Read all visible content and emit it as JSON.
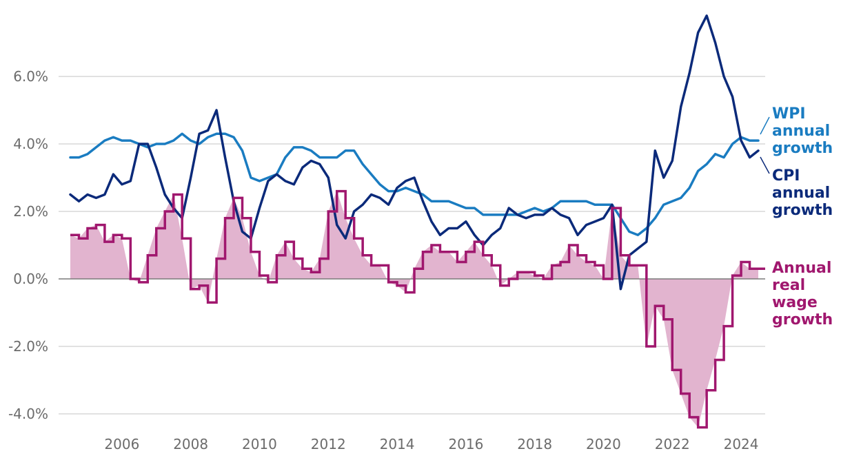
{
  "chart_data": {
    "type": "line",
    "title": "",
    "xlabel": "",
    "ylabel": "",
    "ylim": [
      -4.6,
      7.9
    ],
    "xlim": [
      2004.0,
      2024.7
    ],
    "yticks": [
      6.0,
      4.0,
      2.0,
      0.0,
      -2.0,
      -4.0
    ],
    "ytick_labels": [
      "6.0%",
      "4.0%",
      "2.0%",
      "0.0%",
      "-2.0%",
      "-4.0%"
    ],
    "xticks": [
      2006,
      2008,
      2010,
      2012,
      2014,
      2016,
      2018,
      2020,
      2022,
      2024
    ],
    "xtick_labels": [
      "2006",
      "2008",
      "2010",
      "2012",
      "2014",
      "2016",
      "2018",
      "2020",
      "2022",
      "2024"
    ],
    "grid": true,
    "legend": "direct labels at right",
    "series": [
      {
        "name": "WPI annual growth",
        "label_lines": [
          "WPI",
          "annual",
          "growth"
        ],
        "color": "#1a7cc1",
        "style": "line",
        "x": [
          2004.5,
          2004.75,
          2005,
          2005.25,
          2005.5,
          2005.75,
          2006,
          2006.25,
          2006.5,
          2006.75,
          2007,
          2007.25,
          2007.5,
          2007.75,
          2008,
          2008.25,
          2008.5,
          2008.75,
          2009,
          2009.25,
          2009.5,
          2009.75,
          2010,
          2010.25,
          2010.5,
          2010.75,
          2011,
          2011.25,
          2011.5,
          2011.75,
          2012,
          2012.25,
          2012.5,
          2012.75,
          2013,
          2013.25,
          2013.5,
          2013.75,
          2014,
          2014.25,
          2014.5,
          2014.75,
          2015,
          2015.25,
          2015.5,
          2015.75,
          2016,
          2016.25,
          2016.5,
          2016.75,
          2017,
          2017.25,
          2017.5,
          2017.75,
          2018,
          2018.25,
          2018.5,
          2018.75,
          2019,
          2019.25,
          2019.5,
          2019.75,
          2020,
          2020.25,
          2020.5,
          2020.75,
          2021,
          2021.25,
          2021.5,
          2021.75,
          2022,
          2022.25,
          2022.5,
          2022.75,
          2023,
          2023.25,
          2023.5,
          2023.75,
          2024,
          2024.25,
          2024.5
        ],
        "values": [
          3.6,
          3.6,
          3.7,
          3.9,
          4.1,
          4.2,
          4.1,
          4.1,
          4.0,
          3.9,
          4.0,
          4.0,
          4.1,
          4.3,
          4.1,
          4.0,
          4.2,
          4.3,
          4.3,
          4.2,
          3.8,
          3.0,
          2.9,
          3.0,
          3.1,
          3.6,
          3.9,
          3.9,
          3.8,
          3.6,
          3.6,
          3.6,
          3.8,
          3.8,
          3.4,
          3.1,
          2.8,
          2.6,
          2.6,
          2.7,
          2.6,
          2.5,
          2.3,
          2.3,
          2.3,
          2.2,
          2.1,
          2.1,
          1.9,
          1.9,
          1.9,
          1.9,
          1.9,
          2.0,
          2.1,
          2.0,
          2.1,
          2.3,
          2.3,
          2.3,
          2.3,
          2.2,
          2.2,
          2.2,
          1.8,
          1.4,
          1.3,
          1.5,
          1.8,
          2.2,
          2.3,
          2.4,
          2.7,
          3.2,
          3.4,
          3.7,
          3.6,
          4.0,
          4.2,
          4.1,
          4.1
        ]
      },
      {
        "name": "CPI annual growth",
        "label_lines": [
          "CPI",
          "annual",
          "growth"
        ],
        "color": "#0b2a7a",
        "style": "line",
        "x": [
          2004.5,
          2004.75,
          2005,
          2005.25,
          2005.5,
          2005.75,
          2006,
          2006.25,
          2006.5,
          2006.75,
          2007,
          2007.25,
          2007.5,
          2007.75,
          2008,
          2008.25,
          2008.5,
          2008.75,
          2009,
          2009.25,
          2009.5,
          2009.75,
          2010,
          2010.25,
          2010.5,
          2010.75,
          2011,
          2011.25,
          2011.5,
          2011.75,
          2012,
          2012.25,
          2012.5,
          2012.75,
          2013,
          2013.25,
          2013.5,
          2013.75,
          2014,
          2014.25,
          2014.5,
          2014.75,
          2015,
          2015.25,
          2015.5,
          2015.75,
          2016,
          2016.25,
          2016.5,
          2016.75,
          2017,
          2017.25,
          2017.5,
          2017.75,
          2018,
          2018.25,
          2018.5,
          2018.75,
          2019,
          2019.25,
          2019.5,
          2019.75,
          2020,
          2020.25,
          2020.5,
          2020.75,
          2021,
          2021.25,
          2021.5,
          2021.75,
          2022,
          2022.25,
          2022.5,
          2022.75,
          2023,
          2023.25,
          2023.5,
          2023.75,
          2024,
          2024.25,
          2024.5
        ],
        "values": [
          2.5,
          2.3,
          2.5,
          2.4,
          2.5,
          3.1,
          2.8,
          2.9,
          4.0,
          4.0,
          3.3,
          2.5,
          2.1,
          1.8,
          3.0,
          4.3,
          4.4,
          5.0,
          3.6,
          2.3,
          1.4,
          1.2,
          2.1,
          2.9,
          3.1,
          2.9,
          2.8,
          3.3,
          3.5,
          3.4,
          3.0,
          1.6,
          1.2,
          2.0,
          2.2,
          2.5,
          2.4,
          2.2,
          2.7,
          2.9,
          3.0,
          2.3,
          1.7,
          1.3,
          1.5,
          1.5,
          1.7,
          1.3,
          1.0,
          1.3,
          1.5,
          2.1,
          1.9,
          1.8,
          1.9,
          1.9,
          2.1,
          1.9,
          1.8,
          1.3,
          1.6,
          1.7,
          1.8,
          2.2,
          -0.3,
          0.7,
          0.9,
          1.1,
          3.8,
          3.0,
          3.5,
          5.1,
          6.1,
          7.3,
          7.8,
          7.0,
          6.0,
          5.4,
          4.1,
          3.6,
          3.8
        ]
      },
      {
        "name": "Annual real wage growth",
        "label_lines": [
          "Annual",
          "real",
          "wage",
          "growth"
        ],
        "color": "#a0176e",
        "fill_color": "#e2b4cf",
        "style": "step-with-area",
        "x": [
          2004.5,
          2004.75,
          2005,
          2005.25,
          2005.5,
          2005.75,
          2006,
          2006.25,
          2006.5,
          2006.75,
          2007,
          2007.25,
          2007.5,
          2007.75,
          2008,
          2008.25,
          2008.5,
          2008.75,
          2009,
          2009.25,
          2009.5,
          2009.75,
          2010,
          2010.25,
          2010.5,
          2010.75,
          2011,
          2011.25,
          2011.5,
          2011.75,
          2012,
          2012.25,
          2012.5,
          2012.75,
          2013,
          2013.25,
          2013.5,
          2013.75,
          2014,
          2014.25,
          2014.5,
          2014.75,
          2015,
          2015.25,
          2015.5,
          2015.75,
          2016,
          2016.25,
          2016.5,
          2016.75,
          2017,
          2017.25,
          2017.5,
          2017.75,
          2018,
          2018.25,
          2018.5,
          2018.75,
          2019,
          2019.25,
          2019.5,
          2019.75,
          2020,
          2020.25,
          2020.5,
          2020.75,
          2021,
          2021.25,
          2021.5,
          2021.75,
          2022,
          2022.25,
          2022.5,
          2022.75,
          2023,
          2023.25,
          2023.5,
          2023.75,
          2024,
          2024.25,
          2024.5
        ],
        "values": [
          1.3,
          1.2,
          1.5,
          1.6,
          1.1,
          1.3,
          1.2,
          0.0,
          -0.1,
          0.7,
          1.5,
          2.0,
          2.5,
          1.2,
          -0.3,
          -0.2,
          -0.7,
          0.6,
          1.8,
          2.4,
          1.8,
          0.8,
          0.1,
          -0.1,
          0.7,
          1.1,
          0.6,
          0.3,
          0.2,
          0.6,
          2.0,
          2.6,
          1.8,
          1.2,
          0.7,
          0.4,
          0.4,
          -0.1,
          -0.2,
          -0.4,
          0.3,
          0.8,
          1.0,
          0.8,
          0.8,
          0.5,
          0.8,
          1.1,
          0.7,
          0.4,
          -0.2,
          0.0,
          0.2,
          0.2,
          0.1,
          0.0,
          0.4,
          0.5,
          1.0,
          0.7,
          0.5,
          0.4,
          0.0,
          2.1,
          0.7,
          0.4,
          0.4,
          -2.0,
          -0.8,
          -1.2,
          -2.7,
          -3.4,
          -4.1,
          -4.4,
          -3.3,
          -2.4,
          -1.4,
          0.1,
          0.5,
          0.3,
          0.3
        ]
      }
    ]
  }
}
